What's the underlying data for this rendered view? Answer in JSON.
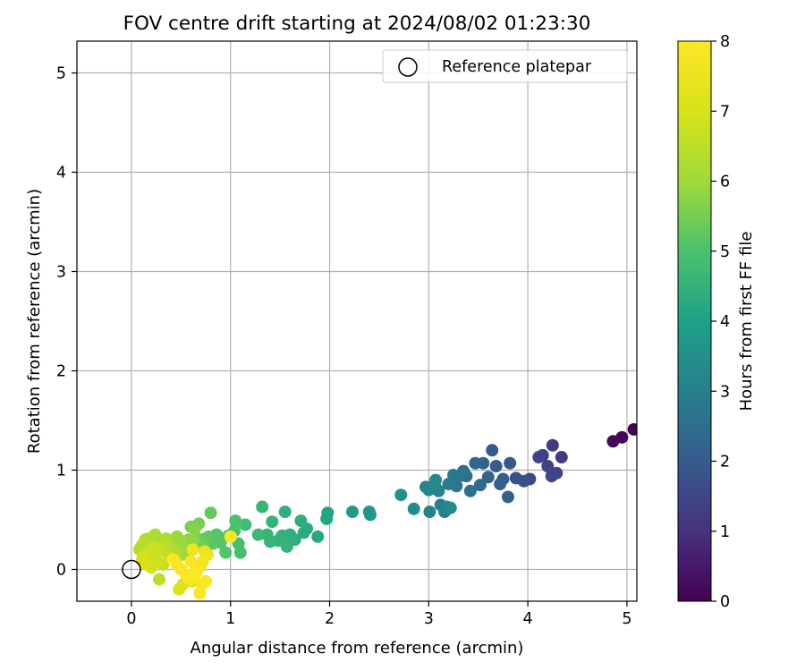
{
  "chart_data": {
    "type": "scatter",
    "title": "FOV centre drift starting at 2024/08/02 01:23:30",
    "xlabel": "Angular distance from reference (arcmin)",
    "ylabel": "Rotation from reference (arcmin)",
    "xlim": [
      -0.55,
      5.1
    ],
    "ylim": [
      -0.32,
      5.32
    ],
    "xticks": [
      "0",
      "1",
      "2",
      "3",
      "4",
      "5"
    ],
    "yticks": [
      "0",
      "1",
      "2",
      "3",
      "4",
      "5"
    ],
    "grid": true,
    "legend": {
      "placement": "top-right",
      "entries": [
        {
          "label": "Reference platepar",
          "marker": "open-circle"
        }
      ]
    },
    "reference_point": {
      "x": 0,
      "y": 0
    },
    "colorbar": {
      "label": "Hours from first FF file",
      "range": [
        0,
        8
      ],
      "ticks": [
        "0",
        "1",
        "2",
        "3",
        "4",
        "5",
        "6",
        "7",
        "8"
      ],
      "colormap": "viridis"
    },
    "series": [
      {
        "x": [
          5.07,
          4.95,
          4.86,
          4.34,
          4.29,
          4.24,
          4.25,
          4.2,
          4.15,
          4.11,
          4.02,
          3.96,
          3.88,
          3.82,
          3.8,
          3.75,
          3.72,
          3.68,
          3.64,
          3.6,
          3.55,
          3.52,
          3.47,
          3.42,
          3.38,
          3.35,
          3.31,
          3.28,
          3.25,
          3.2,
          3.16,
          3.12,
          3.08,
          3.05,
          3.01,
          2.97,
          3.18,
          3.22,
          3.1,
          3.07,
          3.0,
          2.85,
          2.72,
          2.41,
          2.4,
          2.23,
          1.97,
          1.98,
          1.88,
          1.77,
          1.74,
          1.71,
          1.65,
          1.6,
          1.57,
          1.55,
          1.52,
          1.48,
          1.42,
          1.4,
          1.37,
          1.32,
          1.28,
          1.15,
          1.1,
          1.08,
          1.05,
          1.04,
          0.98,
          0.95,
          0.9,
          0.86,
          0.82,
          0.78,
          0.74,
          0.8,
          0.72,
          0.68,
          0.65,
          0.6,
          0.58,
          0.55,
          0.5,
          0.46,
          0.42,
          0.38,
          0.35,
          0.3,
          0.27,
          0.24,
          0.2,
          0.17,
          0.14,
          0.12,
          0.1,
          0.08,
          0.7,
          0.64,
          0.62,
          0.56,
          0.52,
          0.45,
          0.4,
          0.36,
          0.33,
          0.28,
          0.25,
          0.22,
          0.19,
          0.16,
          0.13,
          0.11,
          0.28,
          0.32,
          0.44,
          0.38,
          0.26,
          0.2,
          0.15,
          0.48,
          0.52,
          0.57,
          0.61,
          0.66,
          0.7,
          0.74,
          0.77,
          0.72,
          0.68,
          0.63,
          0.59,
          0.55,
          0.5,
          0.46,
          0.42,
          0.62,
          0.66,
          0.71,
          0.75,
          0.69,
          0.64,
          0.6,
          1.0
        ],
        "y": [
          1.41,
          1.33,
          1.29,
          1.13,
          0.97,
          0.94,
          1.25,
          1.04,
          1.15,
          1.13,
          0.91,
          0.89,
          0.92,
          1.07,
          0.73,
          0.91,
          0.86,
          1.04,
          1.2,
          0.93,
          1.07,
          0.85,
          1.07,
          0.79,
          0.94,
          0.99,
          0.94,
          0.84,
          0.95,
          0.86,
          0.58,
          0.65,
          0.81,
          0.84,
          0.58,
          0.83,
          0.63,
          0.62,
          0.79,
          0.9,
          0.8,
          0.61,
          0.75,
          0.55,
          0.58,
          0.58,
          0.51,
          0.57,
          0.33,
          0.41,
          0.37,
          0.49,
          0.3,
          0.35,
          0.23,
          0.58,
          0.34,
          0.29,
          0.48,
          0.28,
          0.35,
          0.63,
          0.35,
          0.45,
          0.17,
          0.26,
          0.49,
          0.39,
          0.34,
          0.17,
          0.27,
          0.35,
          0.26,
          0.33,
          0.31,
          0.57,
          0.24,
          0.46,
          0.32,
          0.43,
          0.3,
          0.28,
          0.29,
          0.33,
          0.24,
          0.27,
          0.31,
          0.28,
          0.3,
          0.35,
          0.31,
          0.31,
          0.3,
          0.26,
          0.23,
          0.2,
          0.25,
          0.41,
          0.3,
          0.19,
          0.15,
          0.19,
          0.2,
          0.18,
          0.25,
          0.2,
          0.15,
          0.22,
          0.18,
          0.14,
          0.13,
          0.1,
          -0.1,
          0.05,
          0.1,
          0.12,
          0.08,
          0.02,
          0.05,
          -0.2,
          -0.15,
          -0.08,
          -0.12,
          0.02,
          0.05,
          0.18,
          0.15,
          0.08,
          0.02,
          -0.05,
          -0.1,
          -0.05,
          0.0,
          0.05,
          0.1,
          0.2,
          -0.02,
          -0.15,
          -0.12,
          -0.24,
          -0.05,
          0.08,
          0.33
        ],
        "hours": [
          0.0,
          0.1,
          0.2,
          1.2,
          1.4,
          1.5,
          1.2,
          1.4,
          1.3,
          1.4,
          1.6,
          1.7,
          1.7,
          1.9,
          2.1,
          2.0,
          2.1,
          2.0,
          2.0,
          2.2,
          2.2,
          2.4,
          2.3,
          2.5,
          2.5,
          2.6,
          2.7,
          2.7,
          2.8,
          2.9,
          3.0,
          3.0,
          3.0,
          3.1,
          3.1,
          3.1,
          3.2,
          3.3,
          3.2,
          3.3,
          3.3,
          3.4,
          3.5,
          3.7,
          3.7,
          3.8,
          4.1,
          4.1,
          4.2,
          4.3,
          4.3,
          4.4,
          4.4,
          4.4,
          4.5,
          4.4,
          4.5,
          4.5,
          4.5,
          4.6,
          4.6,
          4.6,
          4.7,
          4.8,
          4.9,
          4.9,
          5.0,
          5.0,
          5.1,
          5.1,
          5.1,
          5.1,
          5.2,
          5.2,
          5.3,
          5.3,
          5.4,
          5.5,
          5.5,
          5.6,
          5.7,
          5.8,
          5.9,
          5.9,
          6.0,
          6.0,
          6.1,
          6.1,
          6.2,
          6.2,
          6.2,
          6.3,
          6.3,
          6.4,
          6.4,
          6.4,
          5.5,
          5.7,
          5.8,
          5.9,
          6.0,
          6.2,
          6.3,
          6.4,
          6.5,
          6.6,
          6.7,
          6.7,
          6.8,
          6.8,
          6.9,
          6.9,
          6.5,
          6.6,
          6.6,
          6.7,
          6.8,
          6.9,
          7.0,
          7.0,
          7.1,
          7.2,
          7.3,
          7.4,
          7.5,
          7.5,
          7.6,
          7.7,
          7.7,
          7.8,
          7.8,
          7.9,
          7.9,
          7.9,
          8.0,
          7.6,
          7.7,
          7.8,
          7.9,
          7.8,
          8.0,
          8.0,
          8.0
        ]
      }
    ]
  }
}
